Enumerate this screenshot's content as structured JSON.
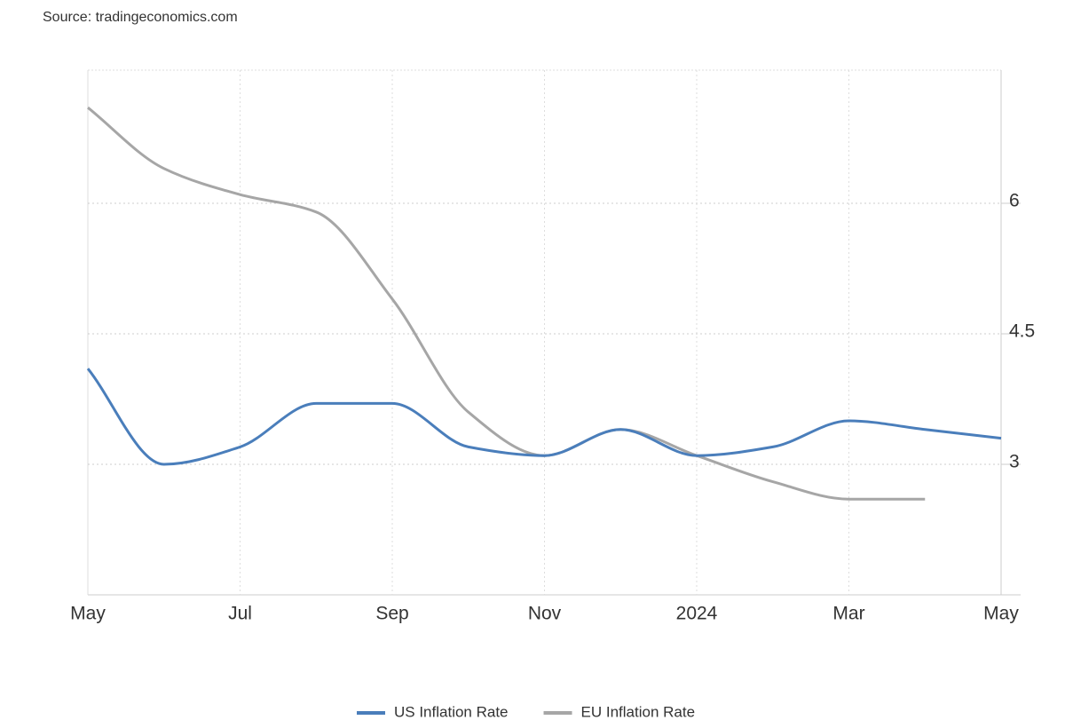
{
  "chart_data": {
    "type": "line",
    "source": "Source: tradingeconomics.com",
    "categories": [
      "May",
      null,
      "Jul",
      null,
      "Sep",
      null,
      "Nov",
      null,
      "2024",
      null,
      "Mar",
      null,
      "May"
    ],
    "series": [
      {
        "name": "US Inflation Rate",
        "color": "#4a7ebb",
        "values": [
          4.1,
          3.0,
          3.2,
          3.7,
          3.7,
          3.2,
          3.1,
          3.4,
          3.1,
          3.2,
          3.5,
          3.4,
          3.3
        ]
      },
      {
        "name": "EU Inflation Rate",
        "color": "#a6a6a6",
        "values": [
          7.1,
          6.4,
          6.1,
          5.9,
          4.9,
          3.6,
          3.1,
          3.4,
          3.1,
          2.8,
          2.6,
          2.6,
          null
        ]
      }
    ],
    "ylim": [
      1.5,
      7.5
    ],
    "yticks": [
      3,
      4.5,
      6
    ],
    "grid": true
  }
}
